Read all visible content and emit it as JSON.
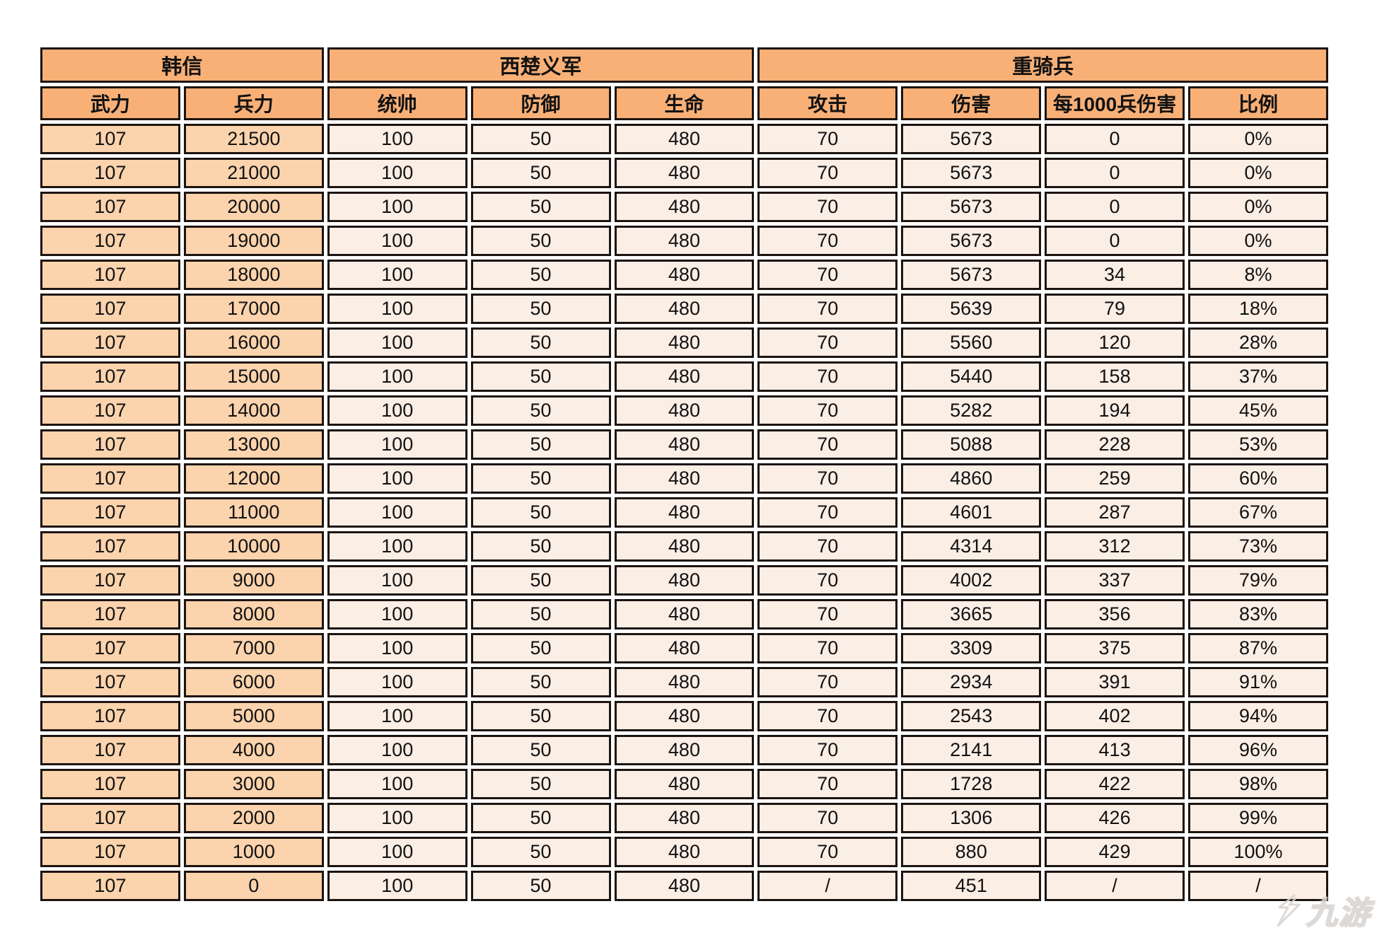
{
  "table": {
    "groups": [
      {
        "label": "韩信",
        "span": 2
      },
      {
        "label": "西楚义军",
        "span": 3
      },
      {
        "label": "重骑兵",
        "span": 4
      }
    ],
    "columns": [
      "武力",
      "兵力",
      "统帅",
      "防御",
      "生命",
      "攻击",
      "伤害",
      "每1000兵伤害",
      "比例"
    ],
    "left_column_count": 2,
    "rows": [
      [
        "107",
        "21500",
        "100",
        "50",
        "480",
        "70",
        "5673",
        "0",
        "0%"
      ],
      [
        "107",
        "21000",
        "100",
        "50",
        "480",
        "70",
        "5673",
        "0",
        "0%"
      ],
      [
        "107",
        "20000",
        "100",
        "50",
        "480",
        "70",
        "5673",
        "0",
        "0%"
      ],
      [
        "107",
        "19000",
        "100",
        "50",
        "480",
        "70",
        "5673",
        "0",
        "0%"
      ],
      [
        "107",
        "18000",
        "100",
        "50",
        "480",
        "70",
        "5673",
        "34",
        "8%"
      ],
      [
        "107",
        "17000",
        "100",
        "50",
        "480",
        "70",
        "5639",
        "79",
        "18%"
      ],
      [
        "107",
        "16000",
        "100",
        "50",
        "480",
        "70",
        "5560",
        "120",
        "28%"
      ],
      [
        "107",
        "15000",
        "100",
        "50",
        "480",
        "70",
        "5440",
        "158",
        "37%"
      ],
      [
        "107",
        "14000",
        "100",
        "50",
        "480",
        "70",
        "5282",
        "194",
        "45%"
      ],
      [
        "107",
        "13000",
        "100",
        "50",
        "480",
        "70",
        "5088",
        "228",
        "53%"
      ],
      [
        "107",
        "12000",
        "100",
        "50",
        "480",
        "70",
        "4860",
        "259",
        "60%"
      ],
      [
        "107",
        "11000",
        "100",
        "50",
        "480",
        "70",
        "4601",
        "287",
        "67%"
      ],
      [
        "107",
        "10000",
        "100",
        "50",
        "480",
        "70",
        "4314",
        "312",
        "73%"
      ],
      [
        "107",
        "9000",
        "100",
        "50",
        "480",
        "70",
        "4002",
        "337",
        "79%"
      ],
      [
        "107",
        "8000",
        "100",
        "50",
        "480",
        "70",
        "3665",
        "356",
        "83%"
      ],
      [
        "107",
        "7000",
        "100",
        "50",
        "480",
        "70",
        "3309",
        "375",
        "87%"
      ],
      [
        "107",
        "6000",
        "100",
        "50",
        "480",
        "70",
        "2934",
        "391",
        "91%"
      ],
      [
        "107",
        "5000",
        "100",
        "50",
        "480",
        "70",
        "2543",
        "402",
        "94%"
      ],
      [
        "107",
        "4000",
        "100",
        "50",
        "480",
        "70",
        "2141",
        "413",
        "96%"
      ],
      [
        "107",
        "3000",
        "100",
        "50",
        "480",
        "70",
        "1728",
        "422",
        "98%"
      ],
      [
        "107",
        "2000",
        "100",
        "50",
        "480",
        "70",
        "1306",
        "426",
        "99%"
      ],
      [
        "107",
        "1000",
        "100",
        "50",
        "480",
        "70",
        "880",
        "429",
        "100%"
      ],
      [
        "107",
        "0",
        "100",
        "50",
        "480",
        "/",
        "451",
        "/",
        "/"
      ]
    ],
    "colors": {
      "header_bg": "#F8B077",
      "left_col_bg": "#FBD3AD",
      "cell_bg": "#FBEEE5",
      "border": "#1C1410"
    }
  },
  "watermark": {
    "text": "九游"
  }
}
